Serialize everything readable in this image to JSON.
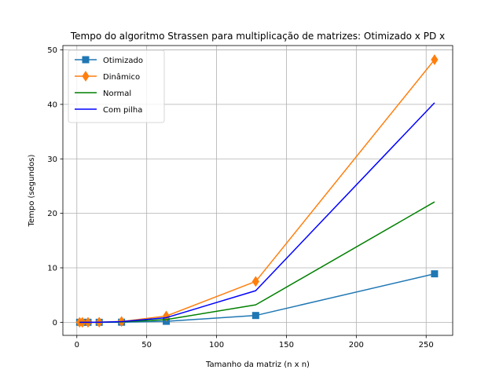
{
  "chart_data": {
    "type": "line",
    "title": "Tempo do algoritmo Strassen para multiplicação de matrizes: Otimizado x PD x",
    "xlabel": "Tamanho da matriz (n x n)",
    "ylabel": "Tempo (segundos)",
    "xlim": [
      -10,
      269
    ],
    "ylim": [
      -2.4,
      50.8
    ],
    "xticks": [
      0,
      50,
      100,
      150,
      200,
      250
    ],
    "yticks": [
      0,
      10,
      20,
      30,
      40,
      50
    ],
    "grid": true,
    "legend_position": "top-left",
    "x": [
      2,
      4,
      8,
      16,
      32,
      64,
      128,
      256
    ],
    "series": [
      {
        "name": "Otimizado",
        "color": "#1f77b4",
        "marker": "square",
        "values": [
          0.0,
          0.0,
          0.0,
          0.0,
          0.02,
          0.18,
          1.25,
          8.9
        ]
      },
      {
        "name": "Dinâmico",
        "color": "#ff7f0e",
        "marker": "diamond",
        "values": [
          0.0,
          0.0,
          0.0,
          0.01,
          0.15,
          1.15,
          7.5,
          48.2
        ]
      },
      {
        "name": "Normal",
        "color": "#008000",
        "marker": "none",
        "values": [
          0.0,
          0.0,
          0.0,
          0.01,
          0.07,
          0.5,
          3.2,
          22.1
        ]
      },
      {
        "name": "Com pilha",
        "color": "#0000ff",
        "marker": "none",
        "values": [
          0.0,
          0.0,
          0.0,
          0.01,
          0.12,
          0.85,
          5.8,
          40.3
        ]
      }
    ]
  }
}
